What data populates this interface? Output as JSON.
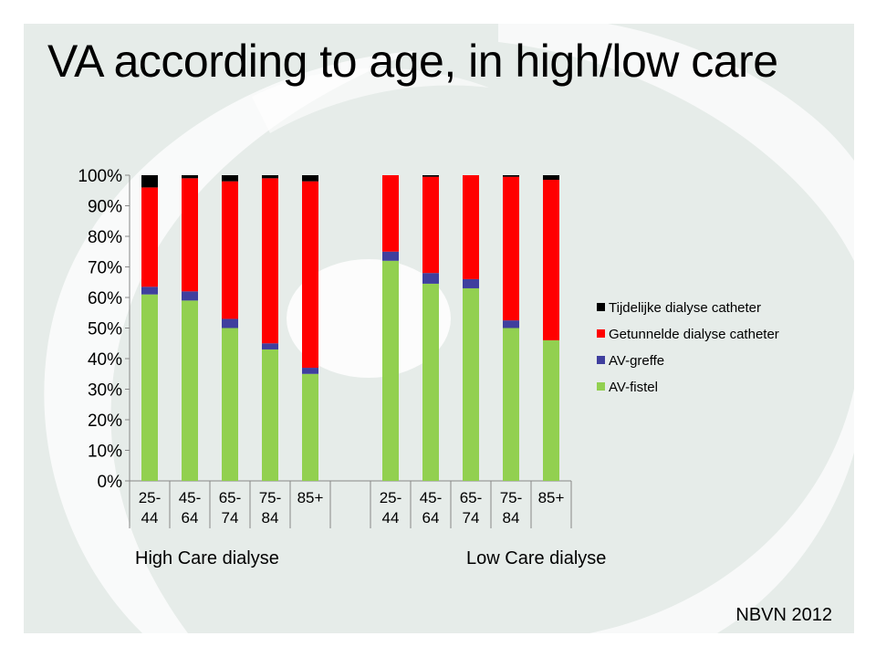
{
  "title": "VA according to age, in high/low care",
  "source": "NBVN 2012",
  "group_labels": [
    "High Care dialyse",
    "Low Care dialyse"
  ],
  "colors": {
    "AV-fistel": "#92d050",
    "AV-greffe": "#3f3f9e",
    "Getunnelde dialyse catheter": "#ff0000",
    "Tijdelijke dialyse catheter": "#000000",
    "background": "#e6ece9"
  },
  "chart_data": {
    "type": "bar",
    "stacked": true,
    "percent": true,
    "ylim": [
      0,
      100
    ],
    "yticks": [
      "0%",
      "10%",
      "20%",
      "30%",
      "40%",
      "50%",
      "60%",
      "70%",
      "80%",
      "90%",
      "100%"
    ],
    "grid": false,
    "legend": "right",
    "groups": [
      "High Care dialyse",
      "Low Care dialyse"
    ],
    "categories": [
      [
        "25-",
        "44"
      ],
      [
        "45-",
        "64"
      ],
      [
        "65-",
        "74"
      ],
      [
        "75-",
        "84"
      ],
      [
        "85+",
        ""
      ],
      [
        "25-",
        "44"
      ],
      [
        "45-",
        "64"
      ],
      [
        "65-",
        "74"
      ],
      [
        "75-",
        "84"
      ],
      [
        "85+",
        ""
      ]
    ],
    "series": [
      {
        "name": "AV-fistel",
        "values": [
          61,
          59,
          50,
          43,
          35,
          72,
          64.5,
          63,
          50,
          46
        ]
      },
      {
        "name": "AV-greffe",
        "values": [
          2.5,
          3,
          3,
          2,
          2,
          3,
          3.5,
          3,
          2.5,
          0
        ]
      },
      {
        "name": "Getunnelde dialyse catheter",
        "values": [
          32.5,
          37,
          45,
          54,
          61,
          25,
          31.5,
          34,
          47,
          52.5
        ]
      },
      {
        "name": "Tijdelijke dialyse catheter",
        "values": [
          4,
          1,
          2,
          1,
          2,
          0,
          0.5,
          0,
          0.5,
          1.5
        ]
      }
    ],
    "legend_order": [
      "Tijdelijke dialyse catheter",
      "Getunnelde dialyse catheter",
      "AV-greffe",
      "AV-fistel"
    ]
  }
}
